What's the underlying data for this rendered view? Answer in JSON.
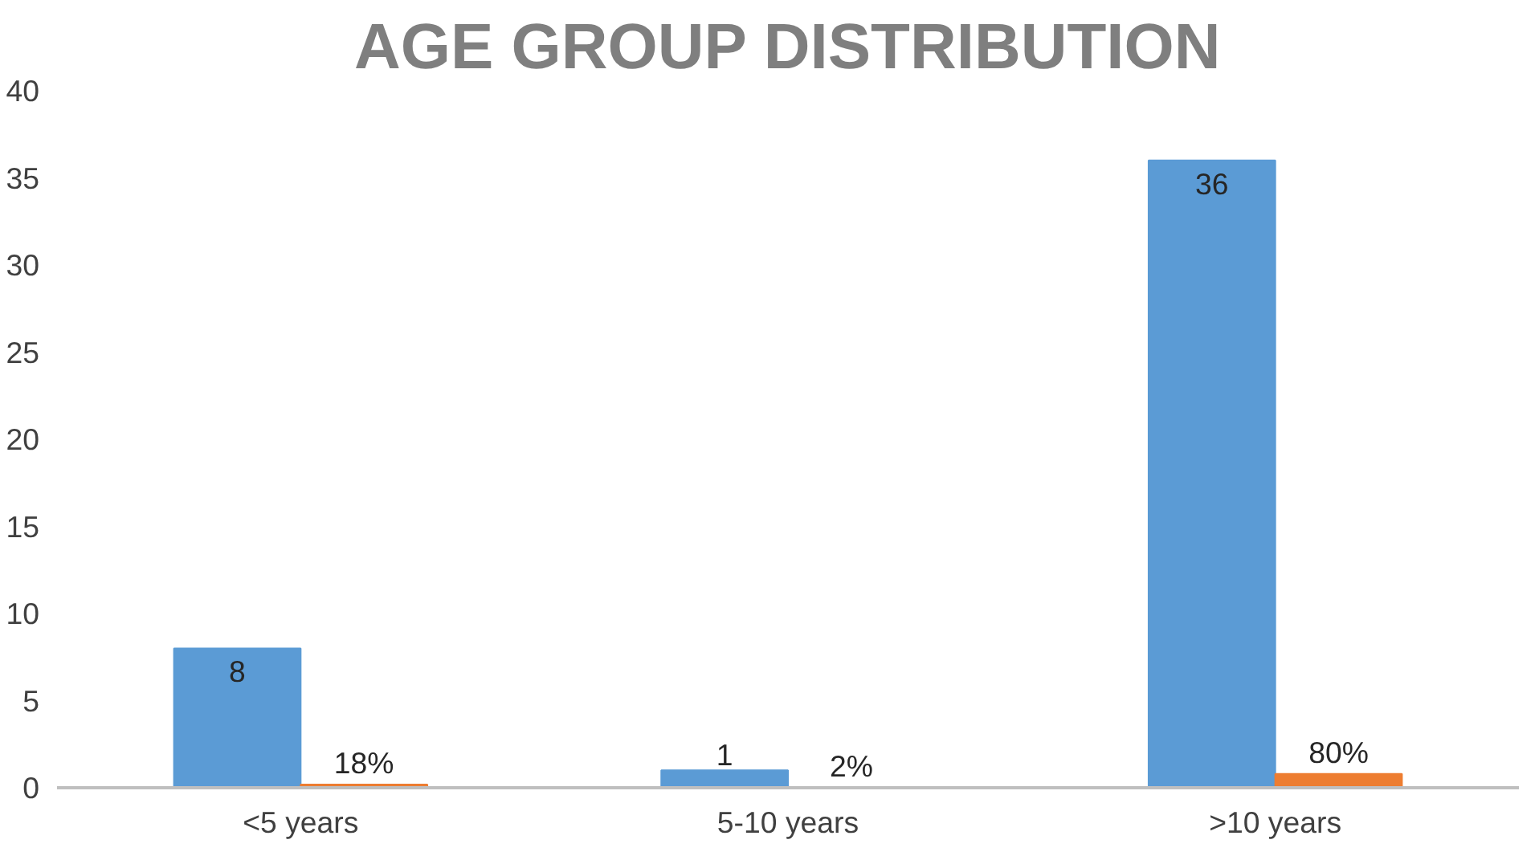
{
  "chart_data": {
    "type": "bar",
    "title": "AGE GROUP DISTRIBUTION",
    "categories": [
      "<5 years",
      "5-10 years",
      ">10 years"
    ],
    "series": [
      {
        "color": "#5b9bd5",
        "values": [
          8,
          1,
          36
        ],
        "value_labels": [
          "8",
          "1",
          "36"
        ]
      },
      {
        "color": "#ed7d31",
        "values": [
          0.18,
          0.02,
          0.8
        ],
        "value_labels": [
          "18%",
          "2%",
          "80%"
        ]
      }
    ],
    "ylim": [
      0,
      40
    ],
    "yticks": [
      0,
      5,
      10,
      15,
      20,
      25,
      30,
      35,
      40
    ],
    "grid": false
  }
}
